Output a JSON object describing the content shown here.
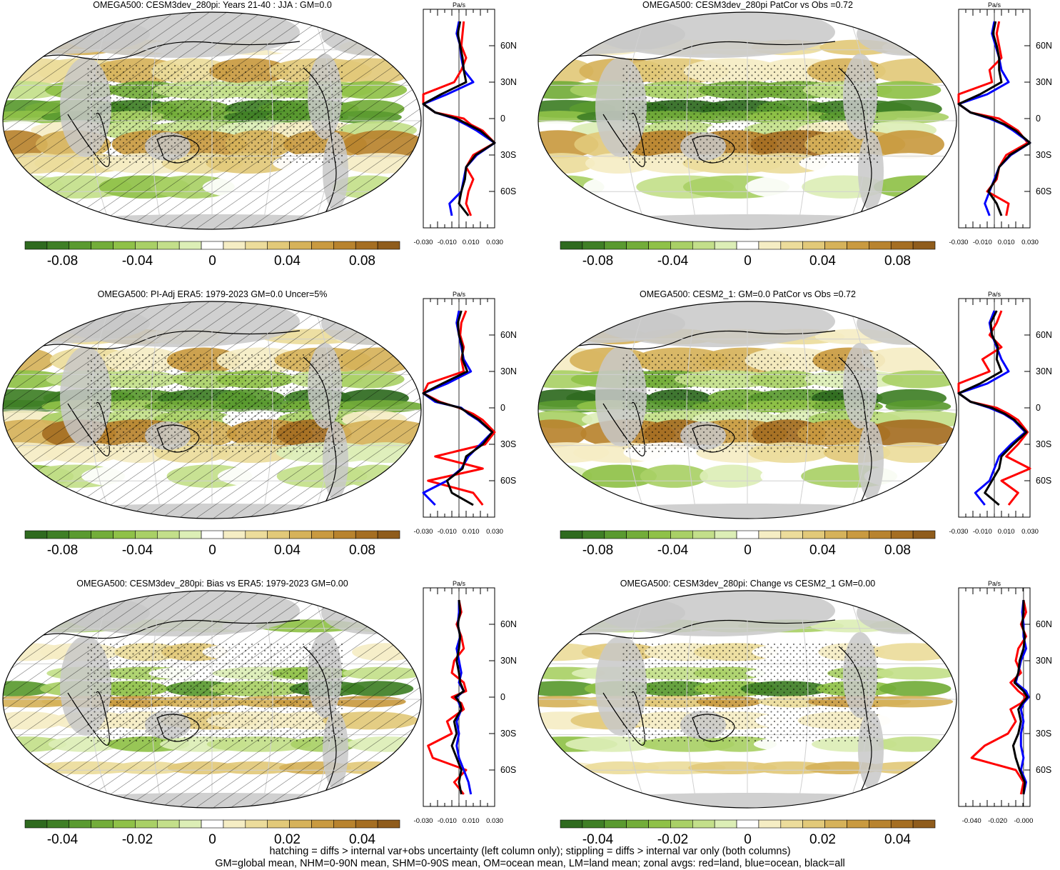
{
  "colors": {
    "palette": [
      "#2f6a1f",
      "#3f7f26",
      "#5a9a30",
      "#73ad3a",
      "#8fc148",
      "#a9d066",
      "#c3df8a",
      "#dceeb6",
      "#ffffff",
      "#f5edc4",
      "#ecdc9b",
      "#e2c979",
      "#d6b25a",
      "#c99a40",
      "#b8832e",
      "#a56e22",
      "#8f5c1c"
    ],
    "land_gray": "#c8c8c8",
    "coast": "#000000",
    "zonal_land": "#ff0000",
    "zonal_ocean": "#0000ff",
    "zonal_all": "#000000"
  },
  "panels": [
    {
      "title": "OMEGA500: CESM3dev_280pi: Years 21-40 : JJA : GM=0.0",
      "colorbar_ticks": [
        "-0.08",
        "-0.04",
        "0",
        "0.04",
        "0.08"
      ],
      "zonal_x_ticks": [
        "-0.030",
        "-0.010",
        "0.010",
        "0.030"
      ],
      "zonal_unit": "Pa/s",
      "lat_labels": [
        "60N",
        "30N",
        "0",
        "30S",
        "60S"
      ],
      "hatched": true
    },
    {
      "title": "OMEGA500: CESM3dev_280pi PatCor vs Obs =0.72",
      "colorbar_ticks": [
        "-0.08",
        "-0.04",
        "0",
        "0.04",
        "0.08"
      ],
      "zonal_x_ticks": [
        "-0.030",
        "-0.010",
        "0.010",
        "0.030"
      ],
      "zonal_unit": "Pa/s",
      "lat_labels": [
        "60N",
        "30N",
        "0",
        "30S",
        "60S"
      ],
      "hatched": false
    },
    {
      "title": "OMEGA500: PI-Adj ERA5: 1979-2023 GM=0.0 Uncer=5%",
      "colorbar_ticks": [
        "-0.08",
        "-0.04",
        "0",
        "0.04",
        "0.08"
      ],
      "zonal_x_ticks": [
        "-0.030",
        "-0.010",
        "0.010",
        "0.030"
      ],
      "zonal_unit": "Pa/s",
      "lat_labels": [
        "60N",
        "30N",
        "0",
        "30S",
        "60S"
      ],
      "hatched": true
    },
    {
      "title": "OMEGA500: CESM2_1: GM=0.0 PatCor vs Obs =0.72",
      "colorbar_ticks": [
        "-0.08",
        "-0.04",
        "0",
        "0.04",
        "0.08"
      ],
      "zonal_x_ticks": [
        "-0.030",
        "-0.010",
        "0.010",
        "0.030"
      ],
      "zonal_unit": "Pa/s",
      "lat_labels": [
        "60N",
        "30N",
        "0",
        "30S",
        "60S"
      ],
      "hatched": false
    },
    {
      "title": "OMEGA500: CESM3dev_280pi: Bias vs ERA5: 1979-2023 GM=0.00",
      "colorbar_ticks": [
        "-0.04",
        "-0.02",
        "0",
        "0.02",
        "0.04"
      ],
      "zonal_x_ticks": [
        "-0.030",
        "-0.010",
        "0.010",
        "0.030"
      ],
      "zonal_unit": "Pa/s",
      "lat_labels": [
        "60N",
        "30N",
        "0",
        "30S",
        "60S"
      ],
      "hatched": true
    },
    {
      "title": "OMEGA500: CESM3dev_280pi: Change vs CESM2_1 GM=0.00",
      "colorbar_ticks": [
        "-0.04",
        "-0.02",
        "0",
        "0.02",
        "0.04"
      ],
      "zonal_x_ticks": [
        "-0.040",
        "-0.020",
        "-0.000"
      ],
      "zonal_unit": "Pa/s",
      "lat_labels": [
        "60N",
        "30N",
        "0",
        "30S",
        "60S"
      ],
      "hatched": false
    }
  ],
  "footer": {
    "line1": "hatching = diffs > internal var+obs uncertainty (left column only); stippling = diffs > internal var only (both columns)",
    "line2": "GM=global mean, NHM=0-90N mean, SHM=0-90S mean, OM=ocean mean, LM=land mean; zonal avgs: red=land, blue=ocean, black=all"
  },
  "chart_data": [
    {
      "type": "heatmap",
      "title": "OMEGA500: CESM3dev_280pi: Years 21-40 : JJA : GM=0.0",
      "colorbar_range": [
        -0.1,
        0.1
      ],
      "zonal": {
        "x_range": [
          -0.03,
          0.03
        ],
        "y_range": [
          -90,
          90
        ],
        "lat": [
          80,
          70,
          60,
          50,
          40,
          30,
          20,
          12,
          5,
          0,
          -5,
          -10,
          -20,
          -30,
          -40,
          -50,
          -60,
          -70,
          -80
        ],
        "series": [
          {
            "name": "red=land",
            "values": [
              0.004,
              0.003,
              0.002,
              0.006,
              0.002,
              -0.004,
              -0.03,
              -0.03,
              -0.02,
              0.004,
              0.01,
              0.02,
              0.03,
              0.012,
              0.006,
              0.012,
              0.008,
              0.006,
              0.01
            ]
          },
          {
            "name": "blue=ocean",
            "values": [
              0.0,
              -0.002,
              0.001,
              0.002,
              0.004,
              0.012,
              -0.01,
              -0.03,
              -0.02,
              -0.004,
              0.006,
              0.015,
              0.03,
              0.015,
              0.006,
              0.004,
              0.002,
              -0.008,
              -0.006
            ]
          },
          {
            "name": "black=all",
            "values": [
              0.001,
              -0.001,
              0.001,
              0.003,
              0.004,
              0.006,
              -0.015,
              -0.03,
              -0.02,
              -0.002,
              0.008,
              0.018,
              0.03,
              0.014,
              0.006,
              0.005,
              0.002,
              0.0,
              0.008
            ]
          }
        ]
      }
    },
    {
      "type": "heatmap",
      "title": "OMEGA500: CESM3dev_280pi PatCor vs Obs =0.72",
      "colorbar_range": [
        -0.1,
        0.1
      ],
      "zonal": {
        "x_range": [
          -0.03,
          0.03
        ],
        "y_range": [
          -90,
          90
        ],
        "lat": [
          80,
          70,
          60,
          50,
          40,
          30,
          20,
          12,
          5,
          0,
          -5,
          -10,
          -20,
          -30,
          -40,
          -50,
          -60,
          -70,
          -80
        ],
        "series": [
          {
            "name": "red=land",
            "values": [
              0.004,
              0.002,
              0.004,
              0.006,
              -0.004,
              -0.002,
              -0.03,
              -0.03,
              -0.02,
              0.004,
              0.012,
              0.02,
              0.028,
              0.01,
              0.004,
              0.002,
              -0.006,
              0.012,
              0.01
            ]
          },
          {
            "name": "blue=ocean",
            "values": [
              0.0,
              -0.002,
              0.001,
              0.004,
              0.006,
              0.012,
              -0.006,
              -0.03,
              -0.02,
              -0.004,
              0.008,
              0.016,
              0.03,
              0.014,
              0.004,
              0.0,
              -0.004,
              -0.008,
              -0.004
            ]
          },
          {
            "name": "black=all",
            "values": [
              0.001,
              -0.001,
              0.002,
              0.004,
              0.004,
              0.006,
              -0.012,
              -0.03,
              -0.02,
              -0.002,
              0.009,
              0.018,
              0.03,
              0.013,
              0.004,
              0.001,
              -0.005,
              0.002,
              0.006
            ]
          }
        ]
      }
    },
    {
      "type": "heatmap",
      "title": "OMEGA500: PI-Adj ERA5: 1979-2023 GM=0.0 Uncer=5%",
      "colorbar_range": [
        -0.1,
        0.1
      ],
      "zonal": {
        "x_range": [
          -0.03,
          0.03
        ],
        "y_range": [
          -90,
          90
        ],
        "lat": [
          80,
          70,
          60,
          50,
          40,
          30,
          20,
          12,
          5,
          0,
          -5,
          -10,
          -20,
          -30,
          -40,
          -50,
          -60,
          -70,
          -80
        ],
        "series": [
          {
            "name": "red=land",
            "values": [
              0.006,
              0.002,
              0.001,
              0.004,
              0.002,
              0.004,
              -0.026,
              -0.03,
              -0.016,
              0.0,
              0.012,
              0.02,
              0.03,
              0.022,
              -0.02,
              0.02,
              -0.026,
              0.012,
              0.02
            ]
          },
          {
            "name": "blue=ocean",
            "values": [
              0.0,
              -0.002,
              0.0,
              0.002,
              0.004,
              0.01,
              -0.01,
              -0.03,
              -0.02,
              0.002,
              0.008,
              0.016,
              0.028,
              0.018,
              0.008,
              0.002,
              -0.01,
              -0.03,
              -0.02
            ]
          },
          {
            "name": "black=all",
            "values": [
              0.002,
              -0.001,
              0.0,
              0.003,
              0.003,
              0.007,
              -0.014,
              -0.03,
              -0.018,
              0.001,
              0.009,
              0.017,
              0.028,
              0.02,
              0.006,
              0.003,
              -0.01,
              -0.006,
              0.012
            ]
          }
        ]
      }
    },
    {
      "type": "heatmap",
      "title": "OMEGA500: CESM2_1: GM=0.0 PatCor vs Obs =0.72",
      "colorbar_range": [
        -0.1,
        0.1
      ],
      "zonal": {
        "x_range": [
          -0.03,
          0.03
        ],
        "y_range": [
          -90,
          90
        ],
        "lat": [
          80,
          70,
          60,
          50,
          40,
          30,
          20,
          12,
          5,
          0,
          -5,
          -10,
          -20,
          -30,
          -40,
          -50,
          -60,
          -70,
          -80
        ],
        "series": [
          {
            "name": "red=land",
            "values": [
              0.006,
              0.002,
              -0.004,
              0.006,
              -0.01,
              -0.004,
              -0.03,
              -0.03,
              -0.02,
              0.002,
              0.012,
              0.02,
              0.028,
              0.02,
              0.01,
              0.03,
              0.006,
              0.02,
              0.012
            ]
          },
          {
            "name": "blue=ocean",
            "values": [
              0.0,
              -0.004,
              -0.002,
              0.002,
              0.006,
              0.012,
              -0.006,
              -0.03,
              -0.02,
              -0.004,
              0.008,
              0.016,
              0.026,
              0.014,
              0.004,
              0.0,
              -0.004,
              -0.016,
              -0.008
            ]
          },
          {
            "name": "black=all",
            "values": [
              0.002,
              -0.003,
              -0.002,
              0.003,
              0.002,
              0.006,
              -0.012,
              -0.03,
              -0.02,
              -0.002,
              0.009,
              0.017,
              0.027,
              0.016,
              0.006,
              0.004,
              -0.002,
              -0.008,
              0.004
            ]
          }
        ]
      }
    },
    {
      "type": "heatmap",
      "title": "OMEGA500: CESM3dev_280pi: Bias vs ERA5: 1979-2023 GM=0.00",
      "colorbar_range": [
        -0.05,
        0.05
      ],
      "zonal": {
        "x_range": [
          -0.03,
          0.03
        ],
        "y_range": [
          -90,
          90
        ],
        "lat": [
          80,
          70,
          60,
          50,
          40,
          30,
          20,
          12,
          5,
          0,
          -5,
          -10,
          -20,
          -30,
          -40,
          -50,
          -60,
          -70,
          -80
        ],
        "series": [
          {
            "name": "red=land",
            "values": [
              0.0,
              0.002,
              -0.002,
              0.002,
              0.004,
              -0.004,
              -0.006,
              0.004,
              0.006,
              -0.006,
              0.002,
              0.004,
              -0.01,
              -0.006,
              -0.026,
              -0.022,
              0.006,
              -0.004,
              0.004
            ]
          },
          {
            "name": "blue=ocean",
            "values": [
              0.0,
              0.0,
              -0.001,
              0.001,
              -0.002,
              0.0,
              0.002,
              0.0,
              0.004,
              -0.002,
              0.0,
              0.002,
              -0.002,
              0.0,
              -0.002,
              0.0,
              0.004,
              0.008,
              0.01
            ]
          },
          {
            "name": "black=all",
            "values": [
              0.0,
              0.001,
              -0.001,
              0.001,
              0.0,
              -0.002,
              0.0,
              0.001,
              0.004,
              -0.003,
              0.001,
              0.002,
              -0.004,
              -0.002,
              -0.006,
              -0.002,
              0.002,
              0.0,
              0.002
            ]
          }
        ]
      }
    },
    {
      "type": "heatmap",
      "title": "OMEGA500: CESM3dev_280pi: Change vs CESM2_1 GM=0.00",
      "colorbar_range": [
        -0.05,
        0.05
      ],
      "zonal": {
        "x_range": [
          -0.05,
          0.005
        ],
        "y_range": [
          -90,
          90
        ],
        "lat": [
          80,
          70,
          60,
          50,
          40,
          30,
          20,
          12,
          5,
          0,
          -5,
          -10,
          -20,
          -30,
          -40,
          -50,
          -60,
          -70,
          -80
        ],
        "series": [
          {
            "name": "red=land",
            "values": [
              0.0,
              0.002,
              -0.002,
              0.002,
              -0.004,
              -0.006,
              -0.002,
              -0.01,
              -0.004,
              0.002,
              -0.002,
              -0.01,
              -0.006,
              -0.012,
              -0.03,
              -0.04,
              -0.006,
              0.0,
              -0.002
            ]
          },
          {
            "name": "blue=ocean",
            "values": [
              0.0,
              -0.001,
              0.0,
              0.0,
              0.002,
              -0.002,
              -0.004,
              -0.006,
              0.002,
              0.004,
              0.0,
              -0.002,
              0.0,
              -0.002,
              -0.002,
              0.0,
              -0.002,
              0.002,
              0.0
            ]
          },
          {
            "name": "black=all",
            "values": [
              0.0,
              0.0,
              -0.001,
              0.001,
              0.0,
              -0.003,
              -0.004,
              -0.007,
              0.0,
              0.003,
              -0.001,
              -0.004,
              -0.002,
              -0.004,
              -0.008,
              -0.006,
              -0.003,
              0.001,
              0.0
            ]
          }
        ]
      }
    }
  ]
}
